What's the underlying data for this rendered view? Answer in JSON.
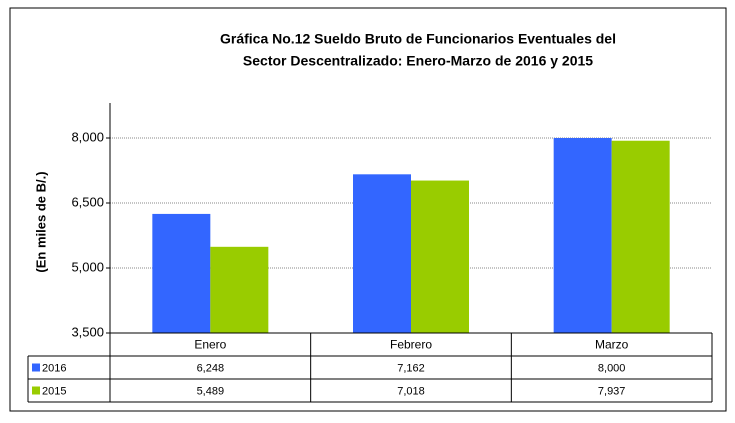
{
  "chart_data": {
    "type": "bar",
    "title": "Gráfica No.12 Sueldo Bruto de Funcionarios Eventuales del",
    "subtitle": "Sector Descentralizado: Enero-Marzo de 2016 y 2015",
    "y_label": "(En miles de B/.)",
    "categories": [
      "Enero",
      "Febrero",
      "Marzo"
    ],
    "series": [
      {
        "name": "2016",
        "color": "#3366ff",
        "values": [
          6248,
          7162,
          8000
        ],
        "value_labels": [
          "6,248",
          "7,162",
          "8,000"
        ]
      },
      {
        "name": "2015",
        "color": "#99cc00",
        "values": [
          5489,
          7018,
          7937
        ],
        "value_labels": [
          "5,489",
          "7,018",
          "7,937"
        ]
      }
    ],
    "ylim": [
      3500,
      8000
    ],
    "yticks": [
      {
        "value": 3500,
        "label": "3,500"
      },
      {
        "value": 5000,
        "label": "5,000"
      },
      {
        "value": 6500,
        "label": "6,500"
      },
      {
        "value": 8000,
        "label": "8,000"
      }
    ],
    "grid": true
  }
}
